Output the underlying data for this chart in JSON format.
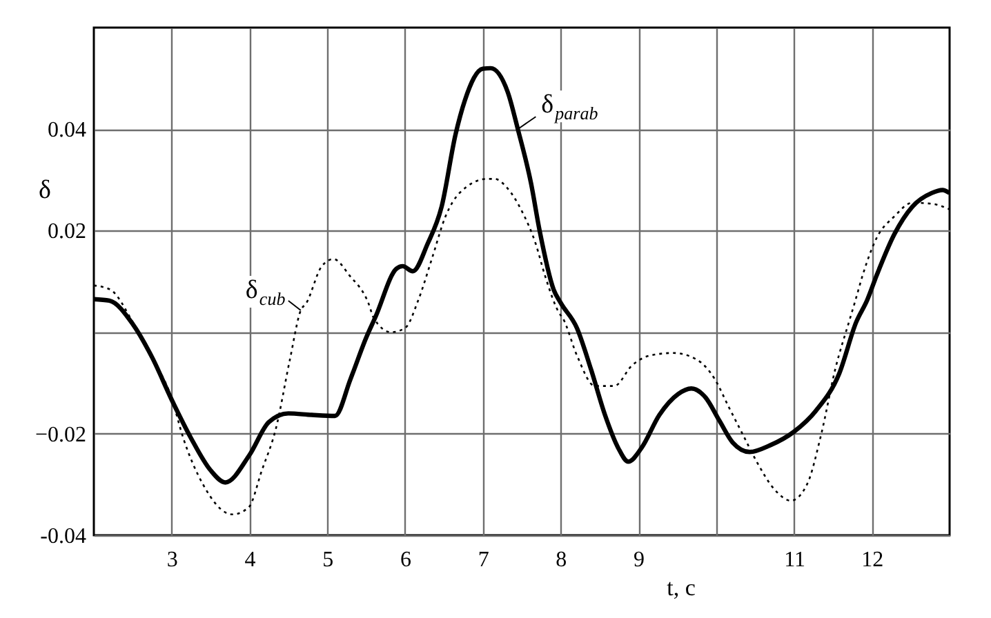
{
  "chart_data": {
    "type": "line",
    "xlabel": "t, c",
    "ylabel": "δ",
    "xlim": [
      2,
      13
    ],
    "ylim": [
      -0.04,
      0.06
    ],
    "xticks": [
      3,
      4,
      5,
      6,
      7,
      8,
      9,
      {
        "value": 10,
        "label": null
      },
      11,
      12
    ],
    "yticks": [
      {
        "value": -0.04,
        "label": "-0.04"
      },
      {
        "value": -0.02,
        "label": "−0.02"
      },
      {
        "value": 0,
        "label": null
      },
      0.02,
      0.04
    ],
    "grid": true,
    "series": [
      {
        "name": "δ$_{parab}$",
        "color": "#000000",
        "line_style": "solid",
        "x": [
          2.0,
          2.2,
          2.5,
          2.75,
          3.0,
          3.25,
          3.5,
          3.69,
          4.0,
          4.25,
          4.5,
          4.8,
          5.1,
          5.3,
          5.5,
          5.62,
          5.89,
          5.97,
          6.1,
          6.29,
          6.47,
          6.65,
          6.77,
          7.0,
          7.1,
          7.32,
          7.45,
          7.62,
          7.73,
          7.91,
          8.0,
          8.21,
          8.39,
          8.57,
          8.74,
          8.87,
          9.04,
          9.27,
          9.51,
          9.68,
          9.86,
          10.04,
          10.21,
          10.43,
          10.69,
          11.0,
          11.28,
          11.58,
          11.8,
          11.94,
          12.06,
          12.29,
          12.52,
          12.77,
          12.91,
          13.0
        ],
        "values": [
          0.0065,
          0.0062,
          0.0016,
          -0.005,
          -0.0133,
          -0.0209,
          -0.0272,
          -0.0296,
          -0.0242,
          -0.0177,
          -0.016,
          -0.0163,
          -0.0165,
          -0.0092,
          -0.0011,
          0.003,
          0.0125,
          0.013,
          0.012,
          0.0174,
          0.0247,
          0.039,
          0.0457,
          0.0519,
          0.052,
          0.0473,
          0.04,
          0.0293,
          0.02,
          0.0084,
          0.0058,
          0.0008,
          -0.0073,
          -0.0163,
          -0.0228,
          -0.0255,
          -0.0228,
          -0.0163,
          -0.0122,
          -0.0111,
          -0.0128,
          -0.0174,
          -0.0217,
          -0.0236,
          -0.0223,
          -0.0196,
          -0.0155,
          -0.0082,
          0.002,
          0.0063,
          0.0111,
          0.0193,
          0.0247,
          0.0274,
          0.028,
          0.0274
        ]
      },
      {
        "name": "δ$_{cub}$",
        "color": "#000000",
        "line_style": "dotted",
        "x": [
          2.0,
          2.21,
          2.5,
          2.75,
          3.0,
          3.15,
          3.4,
          3.78,
          3.99,
          4.16,
          4.34,
          4.52,
          4.66,
          4.73,
          4.93,
          5.08,
          5.29,
          5.53,
          5.6,
          5.82,
          6.0,
          6.17,
          6.35,
          6.52,
          6.7,
          7.06,
          7.15,
          7.32,
          7.5,
          7.68,
          7.8,
          7.98,
          8.03,
          8.21,
          8.44,
          8.69,
          8.92,
          9.15,
          9.45,
          9.75,
          9.98,
          10.16,
          10.34,
          10.52,
          10.75,
          10.96,
          11.17,
          11.35,
          11.53,
          11.72,
          11.79,
          11.88,
          12.06,
          12.29,
          12.52,
          12.77,
          13.0
        ],
        "values": [
          0.0092,
          0.0084,
          0.002,
          -0.005,
          -0.013,
          -0.0209,
          -0.0299,
          -0.0359,
          -0.0345,
          -0.0272,
          -0.019,
          -0.0054,
          0.0043,
          0.0057,
          0.013,
          0.0144,
          0.0111,
          0.0057,
          0.0027,
          0.0,
          0.0008,
          0.0063,
          0.0147,
          0.0228,
          0.0274,
          0.0302,
          0.0302,
          0.0283,
          0.0239,
          0.0174,
          0.0111,
          0.0038,
          0.0027,
          -0.0046,
          -0.0106,
          -0.0106,
          -0.0065,
          -0.0046,
          -0.0041,
          -0.0054,
          -0.0092,
          -0.0147,
          -0.0201,
          -0.0255,
          -0.031,
          -0.0332,
          -0.0299,
          -0.0201,
          -0.0073,
          0.0027,
          0.0063,
          0.0111,
          0.0185,
          0.0228,
          0.0255,
          0.0253,
          0.0242
        ]
      }
    ]
  }
}
